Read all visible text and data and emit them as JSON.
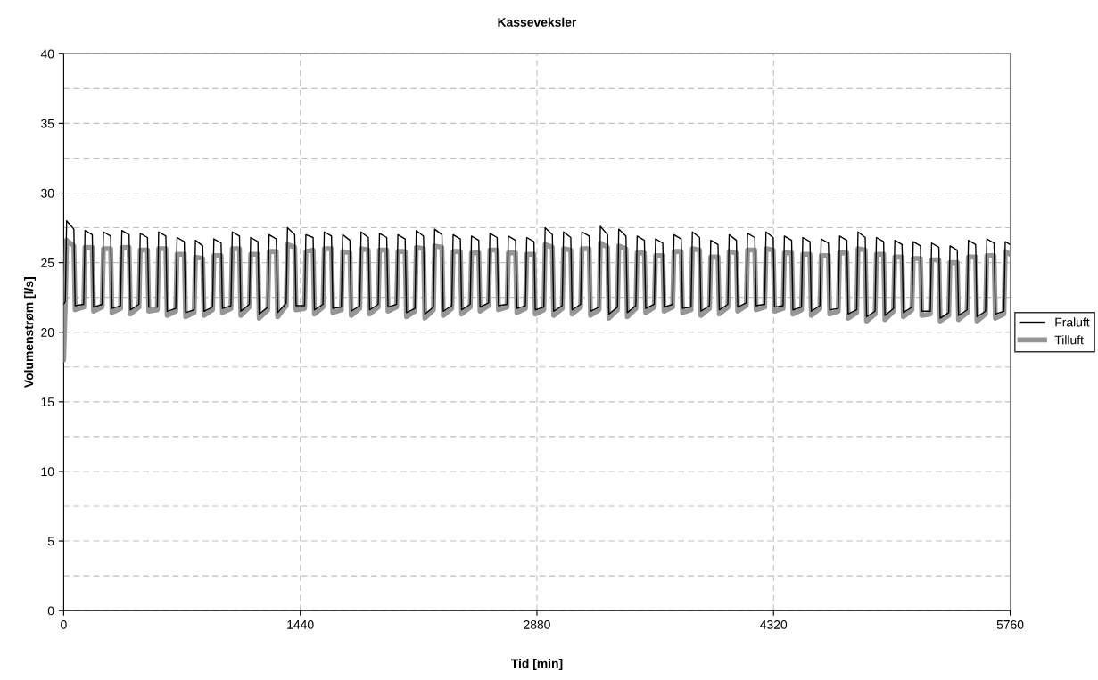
{
  "chart_data": {
    "type": "line",
    "title": "Kasseveksler",
    "xlabel": "Tid [min]",
    "ylabel": "Volumenstrøm [l/s]",
    "x": [
      0,
      10,
      18,
      62,
      70,
      122,
      130,
      174,
      182,
      234,
      242,
      286,
      294,
      346,
      354,
      398,
      406,
      458,
      466,
      510,
      518,
      570,
      578,
      622,
      630,
      682,
      690,
      734,
      742,
      794,
      802,
      846,
      854,
      906,
      914,
      958,
      966,
      1018,
      1026,
      1070,
      1078,
      1130,
      1138,
      1182,
      1190,
      1242,
      1250,
      1294,
      1302,
      1354,
      1362,
      1406,
      1414,
      1466,
      1474,
      1518,
      1526,
      1578,
      1586,
      1630,
      1638,
      1690,
      1698,
      1742,
      1750,
      1802,
      1810,
      1854,
      1862,
      1914,
      1922,
      1966,
      1974,
      2026,
      2034,
      2078,
      2086,
      2138,
      2146,
      2190,
      2198,
      2250,
      2258,
      2302,
      2310,
      2362,
      2370,
      2414,
      2422,
      2474,
      2482,
      2526,
      2534,
      2586,
      2594,
      2638,
      2646,
      2698,
      2706,
      2750,
      2758,
      2810,
      2818,
      2862,
      2870,
      2922,
      2930,
      2974,
      2982,
      3034,
      3042,
      3086,
      3094,
      3146,
      3154,
      3198,
      3206,
      3258,
      3266,
      3310,
      3318,
      3370,
      3378,
      3422,
      3430,
      3482,
      3490,
      3534,
      3542,
      3594,
      3602,
      3646,
      3654,
      3706,
      3714,
      3758,
      3766,
      3818,
      3826,
      3870,
      3878,
      3930,
      3938,
      3982,
      3990,
      4042,
      4050,
      4094,
      4102,
      4154,
      4162,
      4206,
      4214,
      4266,
      4274,
      4318,
      4326,
      4378,
      4386,
      4430,
      4438,
      4490,
      4498,
      4542,
      4550,
      4602,
      4610,
      4654,
      4662,
      4714,
      4722,
      4766,
      4774,
      4826,
      4834,
      4878,
      4886,
      4938,
      4946,
      4990,
      4998,
      5050,
      5058,
      5102,
      5110,
      5162,
      5170,
      5214,
      5222,
      5274,
      5282,
      5326,
      5334,
      5386,
      5394,
      5438,
      5446,
      5498,
      5506,
      5550,
      5558,
      5610,
      5618,
      5662,
      5670,
      5722,
      5730,
      5760
    ],
    "series": [
      {
        "name": "Fraluft",
        "color": "#000000",
        "values": [
          22.0,
          22.2,
          28.0,
          27.4,
          21.9,
          22.0,
          27.3,
          27.0,
          21.8,
          22.0,
          27.2,
          26.9,
          21.7,
          21.9,
          27.3,
          27.0,
          21.6,
          22.0,
          27.1,
          26.8,
          21.8,
          21.8,
          27.2,
          26.9,
          21.5,
          21.7,
          26.8,
          26.5,
          21.4,
          21.6,
          26.6,
          26.2,
          21.5,
          21.8,
          26.7,
          26.4,
          21.7,
          21.9,
          27.2,
          26.9,
          21.5,
          22.0,
          26.8,
          26.5,
          21.3,
          21.8,
          27.0,
          26.7,
          21.4,
          22.1,
          27.5,
          27.0,
          21.9,
          21.9,
          27.0,
          26.8,
          21.6,
          22.0,
          27.2,
          26.9,
          21.7,
          21.8,
          27.0,
          26.6,
          21.5,
          21.9,
          27.2,
          26.8,
          21.6,
          22.0,
          27.1,
          26.8,
          21.8,
          22.0,
          27.0,
          26.7,
          21.4,
          21.7,
          27.3,
          26.9,
          21.3,
          21.8,
          27.4,
          27.0,
          21.5,
          21.9,
          27.0,
          26.7,
          21.6,
          22.0,
          26.9,
          26.6,
          21.8,
          22.1,
          27.1,
          26.8,
          21.9,
          22.0,
          26.9,
          26.6,
          21.7,
          21.9,
          26.8,
          26.5,
          21.6,
          21.8,
          27.5,
          27.0,
          21.5,
          21.9,
          27.2,
          26.8,
          21.6,
          22.0,
          27.2,
          26.9,
          21.5,
          21.8,
          27.6,
          27.0,
          21.3,
          21.8,
          27.4,
          26.9,
          21.4,
          21.9,
          26.9,
          26.6,
          21.7,
          22.0,
          26.7,
          26.4,
          21.8,
          22.0,
          27.0,
          26.7,
          21.7,
          21.8,
          27.2,
          26.8,
          21.5,
          21.9,
          26.6,
          26.3,
          21.6,
          22.0,
          27.0,
          26.6,
          21.8,
          22.1,
          27.1,
          26.8,
          21.9,
          22.0,
          27.2,
          26.8,
          21.8,
          21.9,
          26.9,
          26.6,
          21.6,
          21.8,
          26.8,
          26.5,
          21.5,
          21.9,
          26.7,
          26.4,
          21.6,
          21.7,
          26.9,
          26.6,
          21.3,
          21.6,
          27.2,
          26.8,
          21.1,
          21.5,
          26.8,
          26.5,
          21.2,
          21.7,
          26.6,
          26.3,
          21.4,
          21.8,
          26.5,
          26.2,
          21.5,
          21.5,
          26.4,
          26.1,
          21.0,
          21.4,
          26.2,
          25.9,
          21.2,
          21.6,
          26.6,
          26.3,
          21.1,
          21.5,
          26.7,
          26.4,
          21.3,
          21.5,
          26.5,
          26.3
        ]
      },
      {
        "name": "Tilluft",
        "color": "#969696",
        "values": [
          18.0,
          22.0,
          26.6,
          26.2,
          21.6,
          21.8,
          26.1,
          26.1,
          21.5,
          21.8,
          26.0,
          26.0,
          21.4,
          21.7,
          26.1,
          26.1,
          21.3,
          21.8,
          25.9,
          25.9,
          21.5,
          21.6,
          26.0,
          26.0,
          21.2,
          21.5,
          25.6,
          25.6,
          21.1,
          21.4,
          25.4,
          25.3,
          21.2,
          21.6,
          25.5,
          25.5,
          21.4,
          21.7,
          26.0,
          26.0,
          21.2,
          21.8,
          25.6,
          25.6,
          21.0,
          21.6,
          25.8,
          25.8,
          21.1,
          21.9,
          26.3,
          26.1,
          21.6,
          21.7,
          25.8,
          25.9,
          21.3,
          21.8,
          26.0,
          26.0,
          21.4,
          21.6,
          25.8,
          25.7,
          21.2,
          21.7,
          26.0,
          25.9,
          21.3,
          21.8,
          25.9,
          25.9,
          21.5,
          21.8,
          25.8,
          25.8,
          21.1,
          21.5,
          26.1,
          26.0,
          21.0,
          21.6,
          26.2,
          26.1,
          21.2,
          21.7,
          25.8,
          25.8,
          21.3,
          21.8,
          25.7,
          25.7,
          21.5,
          21.9,
          25.9,
          25.9,
          21.6,
          21.8,
          25.7,
          25.7,
          21.4,
          21.7,
          25.6,
          25.6,
          21.3,
          21.6,
          26.3,
          26.1,
          21.2,
          21.7,
          26.0,
          25.9,
          21.3,
          21.8,
          26.0,
          26.0,
          21.2,
          21.6,
          26.4,
          26.1,
          21.0,
          21.6,
          26.2,
          26.0,
          21.1,
          21.7,
          25.7,
          25.7,
          21.4,
          21.8,
          25.5,
          25.5,
          21.5,
          21.8,
          25.8,
          25.8,
          21.4,
          21.6,
          26.0,
          25.9,
          21.2,
          21.7,
          25.4,
          25.4,
          21.3,
          21.8,
          25.8,
          25.7,
          21.5,
          21.9,
          25.9,
          25.9,
          21.6,
          21.8,
          26.0,
          25.9,
          21.5,
          21.7,
          25.7,
          25.7,
          21.3,
          21.6,
          25.6,
          25.6,
          21.2,
          21.7,
          25.5,
          25.5,
          21.3,
          21.5,
          25.7,
          25.7,
          21.0,
          21.4,
          26.0,
          25.9,
          20.8,
          21.3,
          25.6,
          25.6,
          20.9,
          21.5,
          25.4,
          25.4,
          21.1,
          21.6,
          25.3,
          25.3,
          21.2,
          21.3,
          25.2,
          25.2,
          20.8,
          21.2,
          25.0,
          25.0,
          20.9,
          21.4,
          25.4,
          25.4,
          20.8,
          21.3,
          25.5,
          25.5,
          21.0,
          21.3,
          25.8,
          25.6
        ]
      }
    ],
    "xlim": [
      0,
      5760
    ],
    "xticks": [
      0,
      1440,
      2880,
      4320,
      5760
    ],
    "ylim": [
      0,
      40
    ],
    "yticks": [
      0,
      {
        "value": 2.5,
        "label": null
      },
      5,
      {
        "value": 7.5,
        "label": null
      },
      10,
      {
        "value": 12.5,
        "label": null
      },
      15,
      {
        "value": 17.5,
        "label": null
      },
      20,
      {
        "value": 22.5,
        "label": null
      },
      25,
      {
        "value": 27.5,
        "label": null
      },
      30,
      {
        "value": 32.5,
        "label": null
      },
      35,
      {
        "value": 37.5,
        "label": null
      },
      40
    ],
    "grid": true,
    "legend": "right",
    "line_style": "solid",
    "marker": "none"
  }
}
